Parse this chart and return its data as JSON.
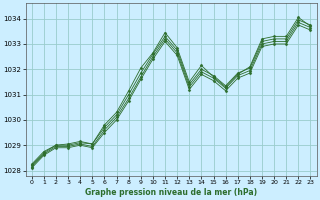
{
  "background_color": "#cceeff",
  "grid_color": "#99cccc",
  "line_color": "#2d6e2d",
  "xlabel": "Graphe pression niveau de la mer (hPa)",
  "xlim": [
    -0.5,
    23.5
  ],
  "ylim": [
    1027.8,
    1034.6
  ],
  "yticks": [
    1028,
    1029,
    1030,
    1031,
    1032,
    1033,
    1034
  ],
  "xticks": [
    0,
    1,
    2,
    3,
    4,
    5,
    6,
    7,
    8,
    9,
    10,
    11,
    12,
    13,
    14,
    15,
    16,
    17,
    18,
    19,
    20,
    21,
    22,
    23
  ],
  "series": [
    [
      1028.2,
      1028.7,
      1029.0,
      1029.0,
      1029.1,
      1029.05,
      1029.8,
      1030.3,
      1031.15,
      1032.05,
      1032.65,
      1033.45,
      1032.85,
      1031.5,
      1032.15,
      1031.7,
      1031.3,
      1031.8,
      1032.1,
      1033.2,
      1033.3,
      1033.3,
      1034.05,
      1033.7
    ],
    [
      1028.25,
      1028.75,
      1029.0,
      1029.05,
      1029.15,
      1029.05,
      1029.7,
      1030.2,
      1031.0,
      1031.85,
      1032.6,
      1033.3,
      1032.75,
      1031.4,
      1032.0,
      1031.75,
      1031.35,
      1031.85,
      1032.05,
      1033.1,
      1033.2,
      1033.2,
      1033.95,
      1033.75
    ],
    [
      1028.15,
      1028.65,
      1028.95,
      1028.95,
      1029.05,
      1028.95,
      1029.6,
      1030.1,
      1030.85,
      1031.7,
      1032.5,
      1033.2,
      1032.65,
      1031.3,
      1031.9,
      1031.65,
      1031.25,
      1031.75,
      1031.95,
      1033.0,
      1033.1,
      1033.1,
      1033.85,
      1033.65
    ],
    [
      1028.1,
      1028.6,
      1028.9,
      1028.9,
      1029.0,
      1028.9,
      1029.5,
      1030.0,
      1030.75,
      1031.6,
      1032.4,
      1033.1,
      1032.55,
      1031.2,
      1031.8,
      1031.55,
      1031.15,
      1031.65,
      1031.85,
      1032.9,
      1033.0,
      1033.0,
      1033.75,
      1033.55
    ]
  ]
}
